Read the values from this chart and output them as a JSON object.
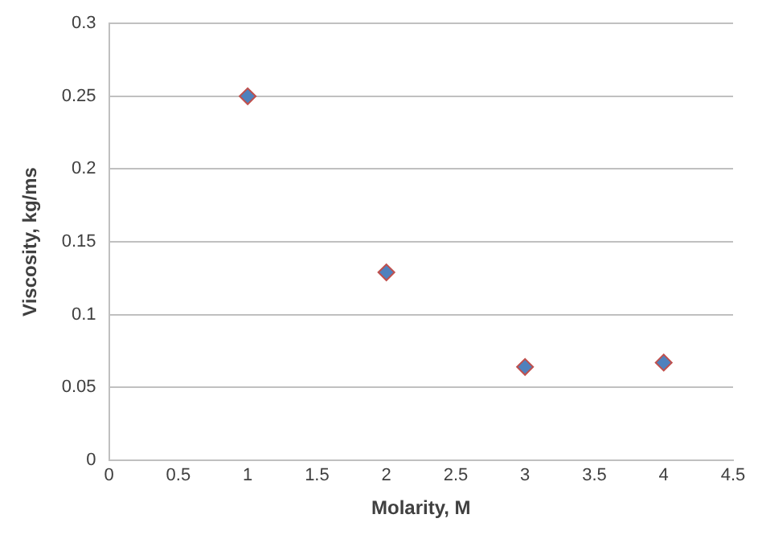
{
  "chart_data": {
    "type": "scatter",
    "xlabel": "Molarity, M",
    "ylabel": "Viscosity, kg/ms",
    "x": [
      1,
      2,
      3,
      4
    ],
    "series": [
      {
        "color": "#4f81bd",
        "values": [
          0.25,
          0.129,
          0.064,
          0.067
        ]
      }
    ],
    "xlim": [
      0,
      4.5
    ],
    "xticks": [
      0,
      0.5,
      1,
      1.5,
      2,
      2.5,
      3,
      3.5,
      4,
      4.5
    ],
    "ylim": [
      0,
      0.3
    ],
    "yticks": [
      0,
      0.05,
      0.1,
      0.15,
      0.2,
      0.25,
      0.3
    ],
    "grid": "y",
    "marker": "diamond",
    "legend": false
  }
}
